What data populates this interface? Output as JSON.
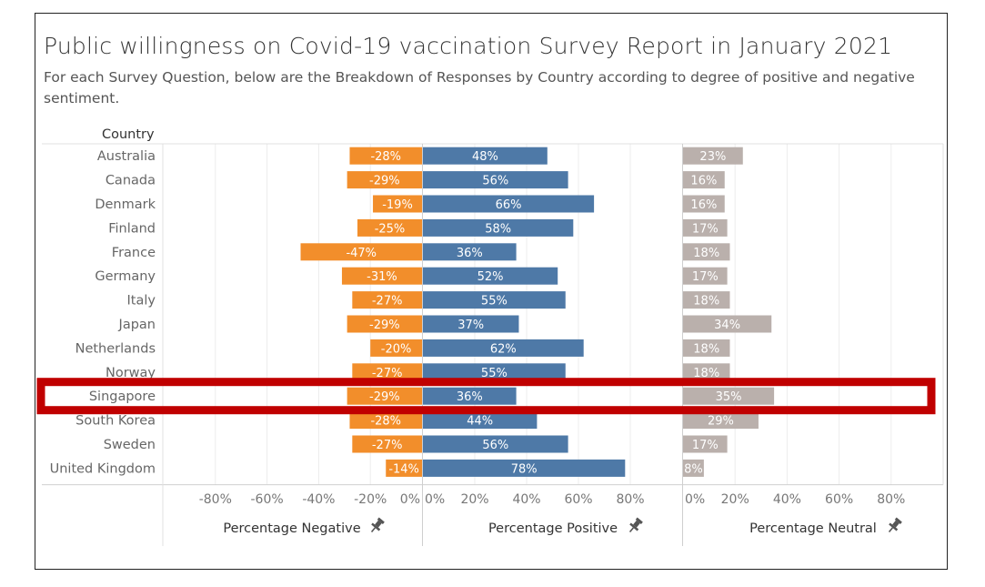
{
  "title": "Public willingness on Covid-19 vaccination Survey Report in January 2021",
  "subtitle": "For each Survey Question, below are the Breakdown of Responses by Country according to degree of positive and negative sentiment.",
  "column_header": "Country",
  "highlighted_country": "Singapore",
  "colors": {
    "negative": "#F28E2B",
    "positive": "#4E79A7",
    "neutral": "#BAB0AC",
    "highlight": "#C00000"
  },
  "pin_icon": "pin-icon",
  "chart_data": {
    "type": "bar",
    "categories": [
      "Australia",
      "Canada",
      "Denmark",
      "Finland",
      "France",
      "Germany",
      "Italy",
      "Japan",
      "Netherlands",
      "Norway",
      "Singapore",
      "South Korea",
      "Sweden",
      "United Kingdom"
    ],
    "series": [
      {
        "key": "negative",
        "name": "Percentage Negative",
        "values": [
          -28,
          -29,
          -19,
          -25,
          -47,
          -31,
          -27,
          -29,
          -20,
          -27,
          -29,
          -28,
          -27,
          -14
        ],
        "labels": [
          "-28%",
          "-29%",
          "-19%",
          "-25%",
          "-47%",
          "-31%",
          "-27%",
          "-29%",
          "-20%",
          "-27%",
          "-29%",
          "-28%",
          "-27%",
          "-14%"
        ],
        "ticks": [
          "-80%",
          "-60%",
          "-40%",
          "-20%",
          "0%"
        ],
        "tick_values": [
          -80,
          -60,
          -40,
          -20,
          0
        ]
      },
      {
        "key": "positive",
        "name": "Percentage Positive",
        "values": [
          48,
          56,
          66,
          58,
          36,
          52,
          55,
          37,
          62,
          55,
          36,
          44,
          56,
          78
        ],
        "labels": [
          "48%",
          "56%",
          "66%",
          "58%",
          "36%",
          "52%",
          "55%",
          "37%",
          "62%",
          "55%",
          "36%",
          "44%",
          "56%",
          "78%"
        ],
        "ticks": [
          "0%",
          "20%",
          "40%",
          "60%",
          "80%"
        ],
        "tick_values": [
          0,
          20,
          40,
          60,
          80
        ]
      },
      {
        "key": "neutral",
        "name": "Percentage Neutral",
        "values": [
          23,
          16,
          16,
          17,
          18,
          17,
          18,
          34,
          18,
          18,
          35,
          29,
          17,
          8
        ],
        "labels": [
          "23%",
          "16%",
          "16%",
          "17%",
          "18%",
          "17%",
          "18%",
          "34%",
          "18%",
          "18%",
          "35%",
          "29%",
          "17%",
          "8%"
        ],
        "ticks": [
          "0%",
          "20%",
          "40%",
          "60%",
          "80%"
        ],
        "tick_values": [
          0,
          20,
          40,
          60,
          80
        ]
      }
    ]
  }
}
